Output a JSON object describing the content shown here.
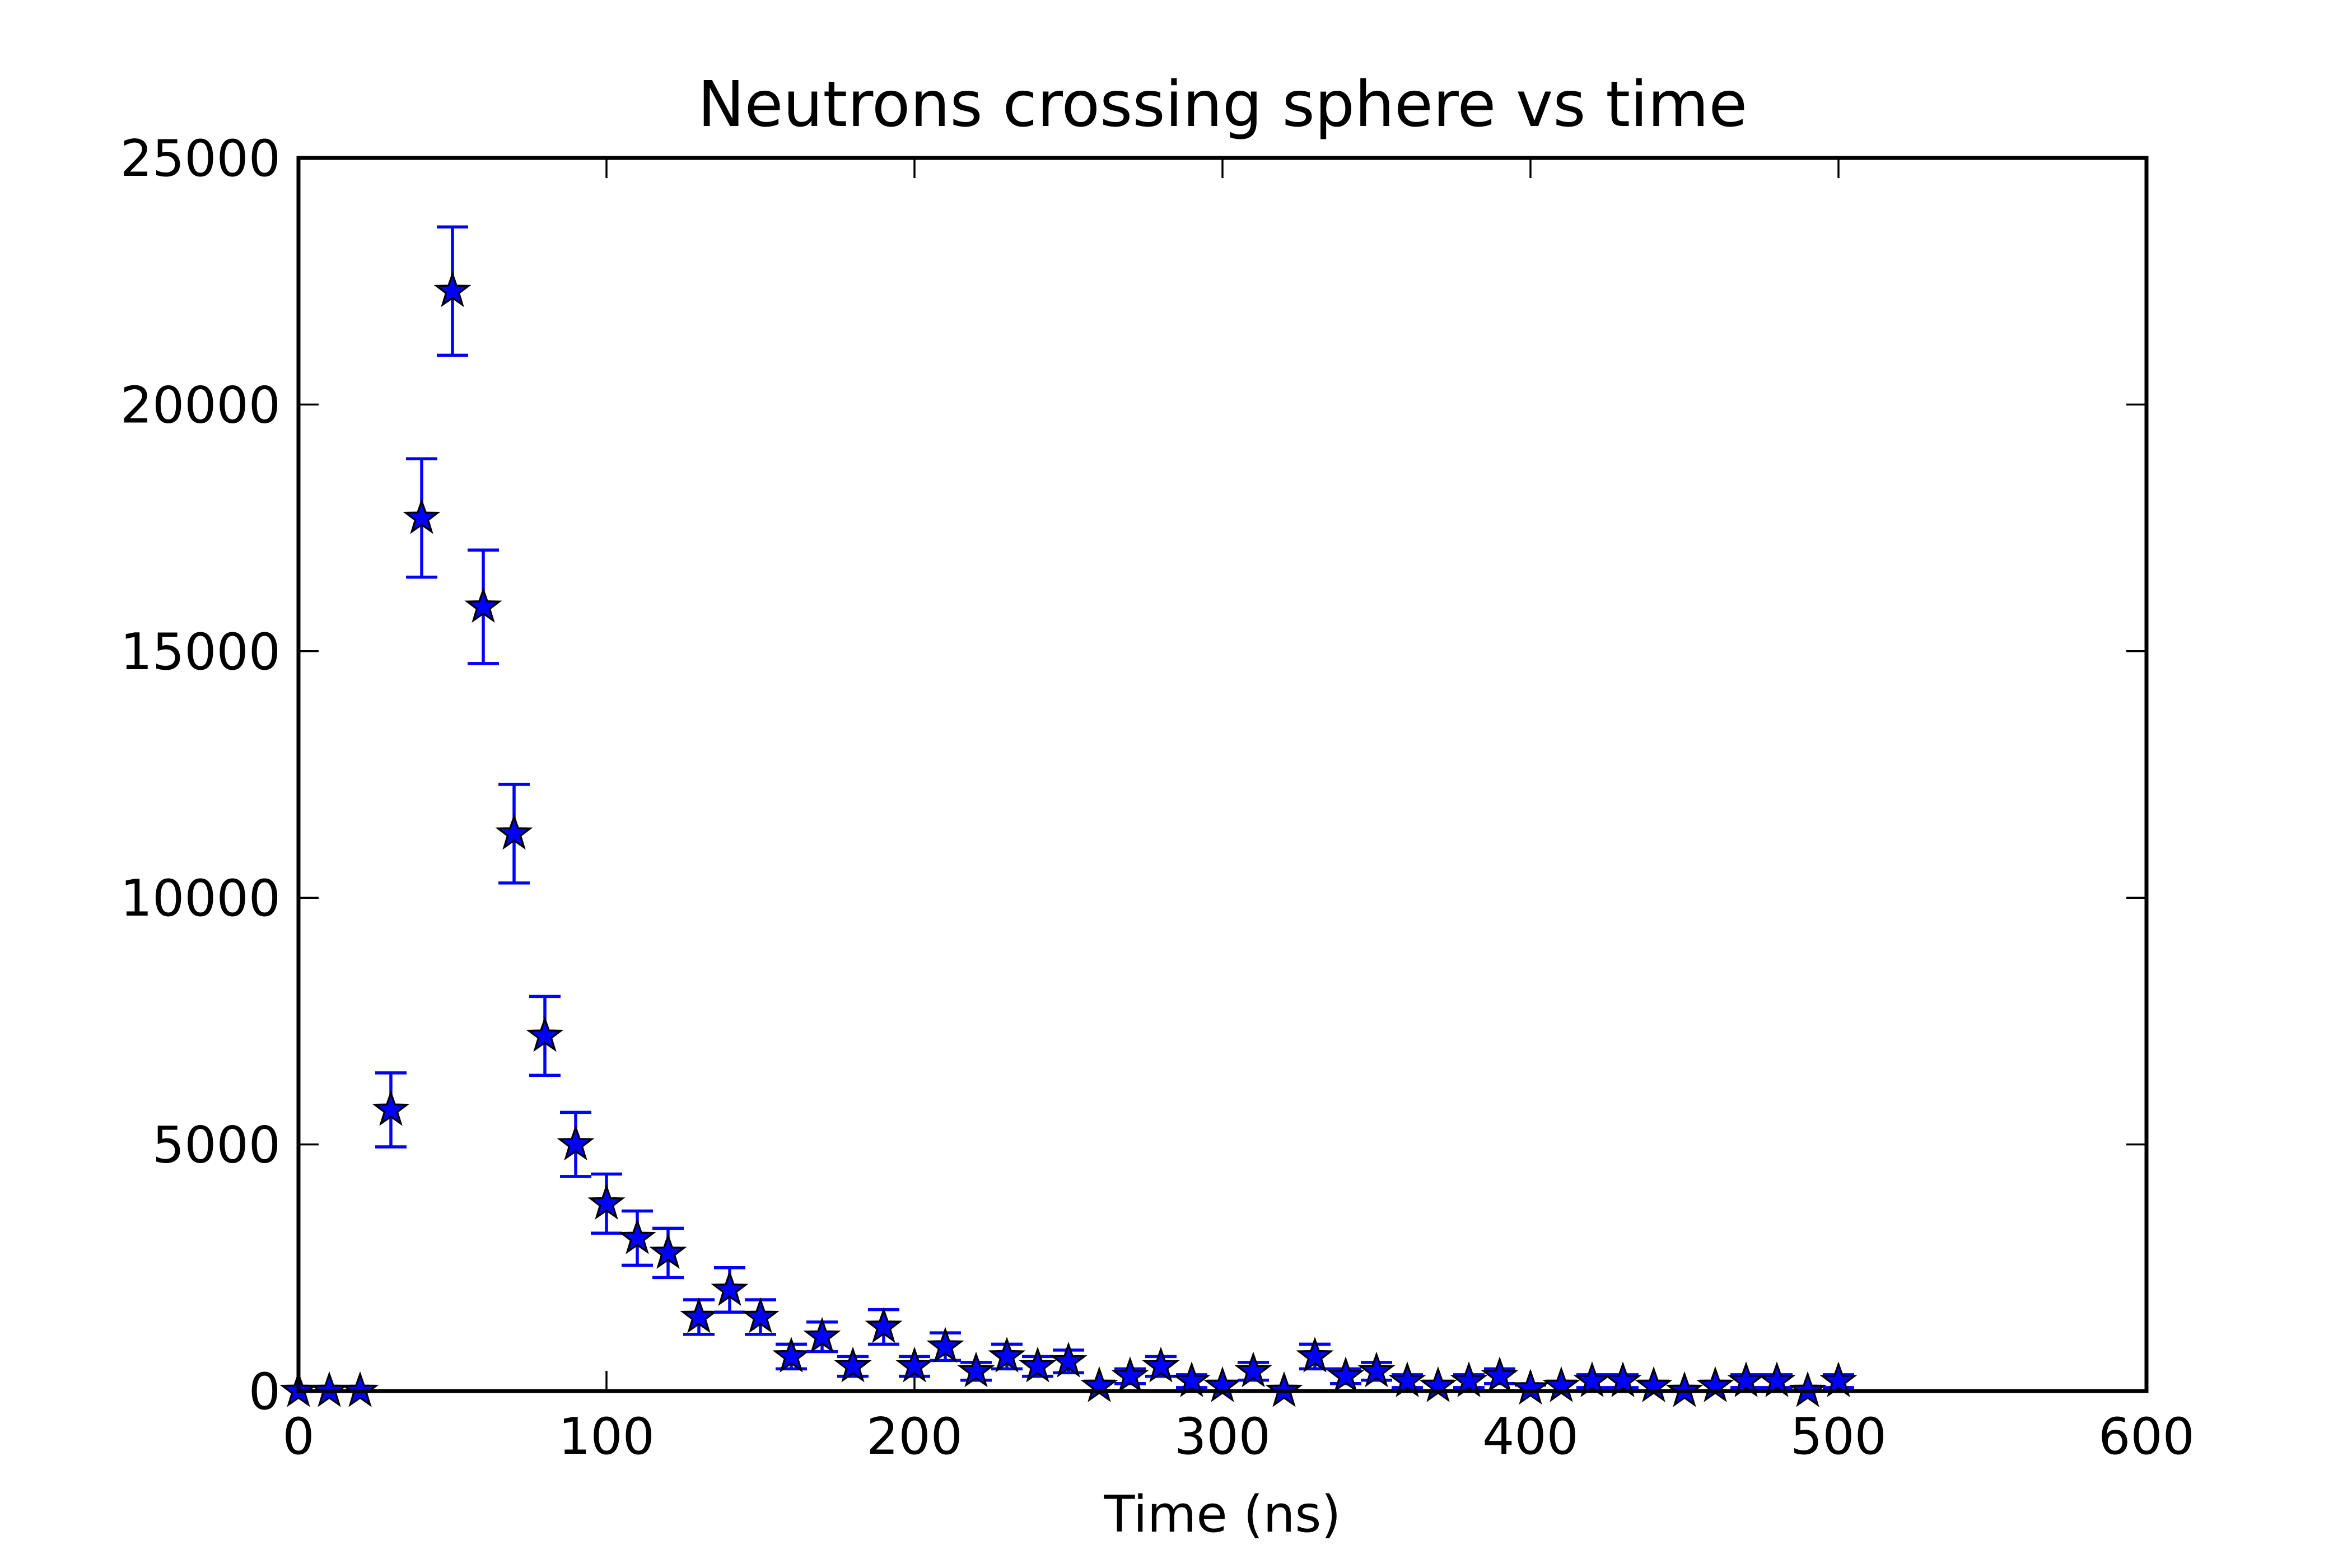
{
  "chart_data": {
    "type": "scatter",
    "title": "Neutrons crossing sphere vs time",
    "xlabel": "Time (ns)",
    "ylabel": "",
    "xlim": [
      0,
      600
    ],
    "ylim": [
      0,
      25000
    ],
    "xticks": [
      0,
      100,
      200,
      300,
      400,
      500,
      600
    ],
    "yticks": [
      0,
      5000,
      10000,
      15000,
      20000,
      25000
    ],
    "grid": false,
    "legend": "none",
    "marker": "star",
    "colors": {
      "marker": "#0000ff",
      "errorbar": "#0000ff",
      "edge": "#000000"
    },
    "series": [
      {
        "x": [
          0,
          10,
          20,
          30,
          40,
          50,
          60,
          70,
          80,
          90,
          100,
          110,
          120,
          130,
          140,
          150,
          160,
          170,
          180,
          190,
          200,
          210,
          220,
          230,
          240,
          250,
          260,
          270,
          280,
          290,
          300,
          310,
          320,
          330,
          340,
          350,
          360,
          370,
          380,
          390,
          400,
          410,
          420,
          430,
          440,
          450,
          460,
          470,
          480,
          490,
          500
        ],
        "y": [
          0,
          0,
          0,
          5700,
          17700,
          22300,
          15900,
          11300,
          7200,
          5000,
          3800,
          3100,
          2800,
          1500,
          2050,
          1500,
          700,
          1100,
          500,
          1300,
          500,
          900,
          400,
          700,
          500,
          600,
          100,
          300,
          500,
          200,
          100,
          400,
          0,
          700,
          300,
          400,
          200,
          100,
          200,
          300,
          50,
          100,
          200,
          200,
          100,
          0,
          100,
          200,
          200,
          0,
          200
        ],
        "yerr": [
          0,
          0,
          0,
          750,
          1200,
          1300,
          1150,
          1000,
          800,
          650,
          600,
          550,
          500,
          350,
          450,
          350,
          250,
          300,
          200,
          350,
          200,
          280,
          180,
          250,
          200,
          230,
          100,
          150,
          200,
          130,
          100,
          180,
          0,
          250,
          150,
          180,
          130,
          100,
          130,
          150,
          70,
          100,
          130,
          130,
          100,
          0,
          100,
          130,
          130,
          0,
          130
        ]
      }
    ]
  }
}
